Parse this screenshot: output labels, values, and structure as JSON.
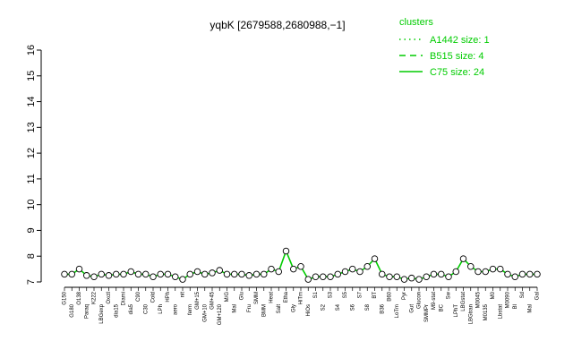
{
  "chart_data": {
    "type": "line",
    "title": "yqbK [2679588,2680988,−1]",
    "xlabel": "",
    "ylabel": "",
    "ylim": [
      7,
      16
    ],
    "yticks": [
      7,
      8,
      9,
      10,
      11,
      12,
      13,
      14,
      15,
      16
    ],
    "grid": false,
    "legend_position": "top-right",
    "legend": {
      "title": "clusters",
      "entries": [
        {
          "label": "A1442 size: 1",
          "style": "dotted"
        },
        {
          "label": "B515 size: 4",
          "style": "dashed"
        },
        {
          "label": "C75 size: 24",
          "style": "solid"
        }
      ]
    },
    "colors": {
      "series": "#00cc00",
      "points": "#000000",
      "axis": "#000000"
    },
    "categories": [
      "G150",
      "G180",
      "O138",
      "Paraq",
      "K222",
      "LBGexp",
      "Oxctl",
      "dia15",
      "Diami",
      "dia5",
      "C90",
      "C30",
      "Cold",
      "LPh",
      "HPh",
      "aero",
      "nit",
      "ferm",
      "GM+15",
      "GM+10",
      "GM+45",
      "GM+120",
      "M/G",
      "Mal",
      "Glu",
      "Fru",
      "SMM",
      "BMM",
      "Heat",
      "Salt",
      "Etha",
      "Gly",
      "HiTm",
      "HiOs",
      "S1",
      "S2",
      "S3",
      "S4",
      "S5",
      "S6",
      "S7",
      "S8",
      "BT",
      "B36",
      "B60",
      "LoTm",
      "Pyr",
      "Gut",
      "Glucon",
      "SMMPr",
      "M9-stat",
      "BC",
      "Sw",
      "LPhT",
      "LBGstat",
      "LBGtran",
      "M0045",
      "M0135",
      "M0",
      "Lbstat",
      "M0090",
      "Bl",
      "Sd",
      "Mal",
      "Gal"
    ],
    "series": [
      {
        "name": "",
        "values": [
          7.3,
          7.3,
          7.5,
          7.25,
          7.2,
          7.3,
          7.25,
          7.3,
          7.3,
          7.4,
          7.3,
          7.3,
          7.2,
          7.3,
          7.3,
          7.2,
          7.1,
          7.3,
          7.4,
          7.3,
          7.35,
          7.45,
          7.3,
          7.3,
          7.3,
          7.25,
          7.3,
          7.3,
          7.5,
          7.4,
          8.2,
          7.5,
          7.6,
          7.1,
          7.2,
          7.2,
          7.2,
          7.3,
          7.4,
          7.5,
          7.4,
          7.6,
          7.9,
          7.3,
          7.2,
          7.2,
          7.1,
          7.15,
          7.1,
          7.2,
          7.3,
          7.3,
          7.2,
          7.4,
          7.9,
          7.6,
          7.4,
          7.4,
          7.5,
          7.5,
          7.3,
          7.2,
          7.3,
          7.3,
          7.3
        ]
      }
    ]
  }
}
